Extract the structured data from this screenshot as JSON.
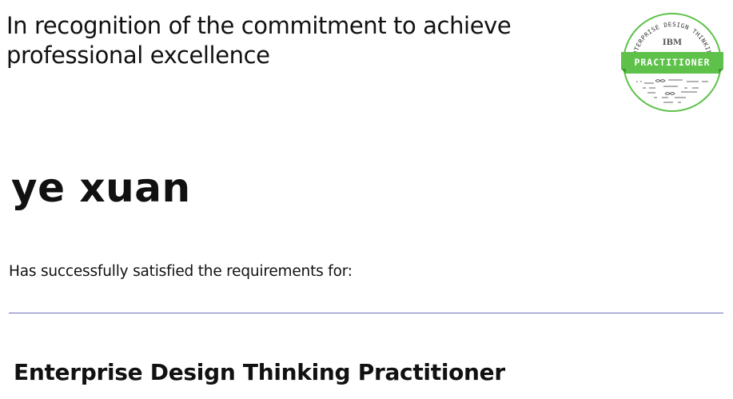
{
  "certificate": {
    "recognition_line_1": "In recognition of the commitment to achieve",
    "recognition_line_2": "professional excellence",
    "recipient_name": "ye xuan",
    "requirements_text": "Has successfully satisfied the requirements for:",
    "achievement_title": "Enterprise Design Thinking Practitioner",
    "divider_color": "#6f6fb8"
  },
  "badge": {
    "ring_text": "ENTERPRISE DESIGN THINKING",
    "org": "IBM",
    "level": "PRACTITIONER",
    "accent_color": "#5ec24a",
    "icon": "design-thinking-badge-icon"
  }
}
